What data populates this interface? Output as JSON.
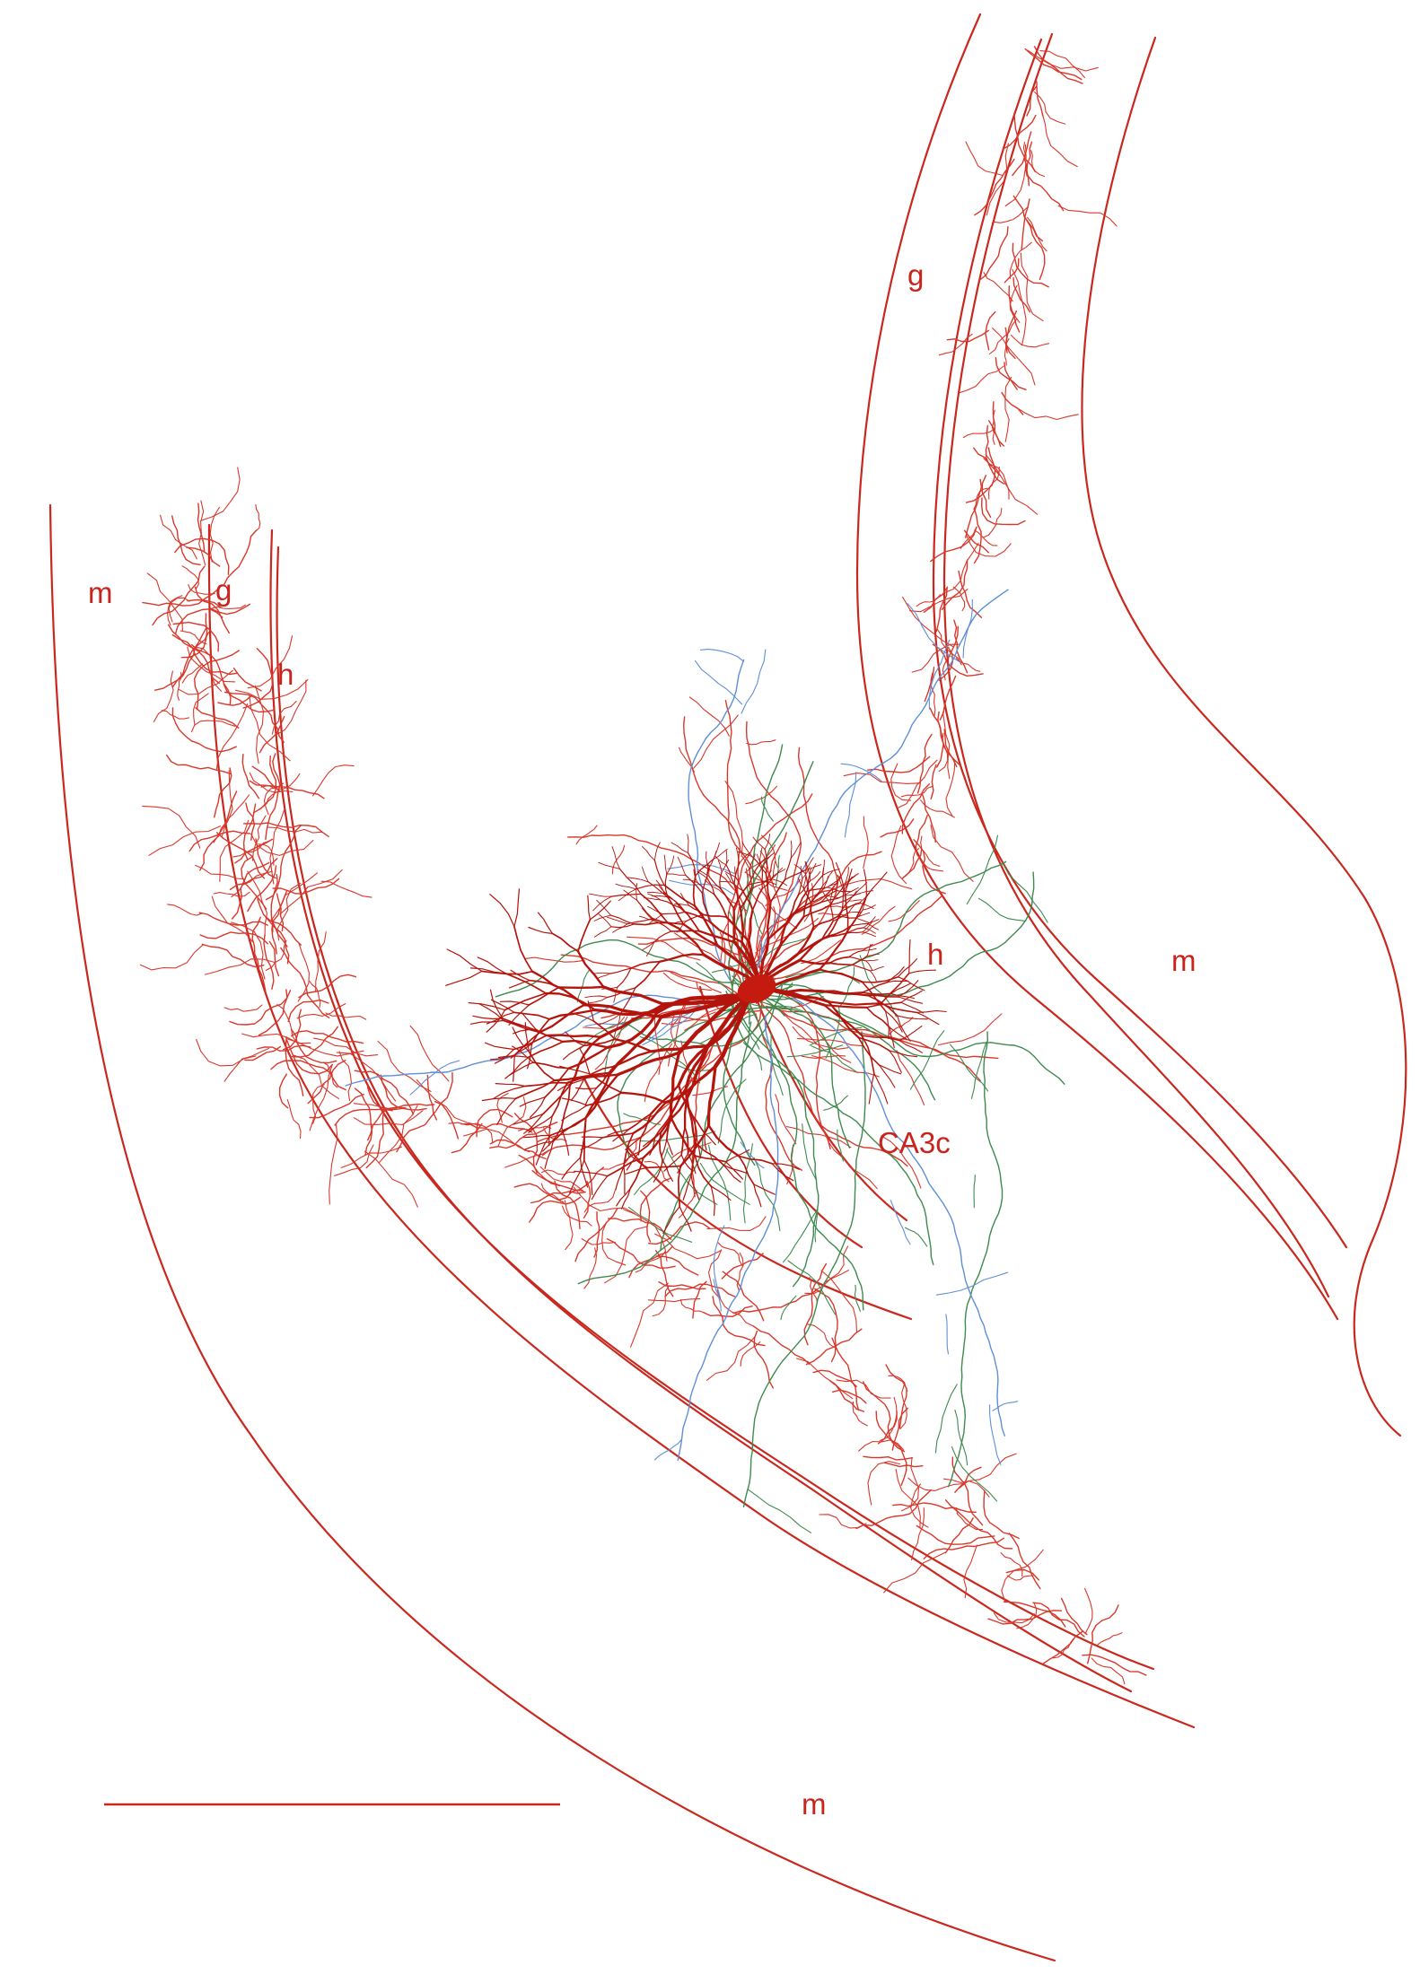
{
  "figure": {
    "colors": {
      "boundary": "#c9281e",
      "label": "#c8241c",
      "cell_body": "#c41a10",
      "dendrites": "#b3140c",
      "axon_red": "#d8382c",
      "axon_green": "#3f8a4e",
      "axon_blue": "#5f8fd6",
      "background": "#ffffff"
    },
    "labels": {
      "left_molecular": "m",
      "left_granule": "g",
      "left_hilus": "h",
      "upper_granule": "g",
      "right_hilus": "h",
      "right_molecular": "m",
      "field": "CA3c",
      "bottom_molecular": "m"
    },
    "scale_bar": {
      "label": ""
    }
  }
}
